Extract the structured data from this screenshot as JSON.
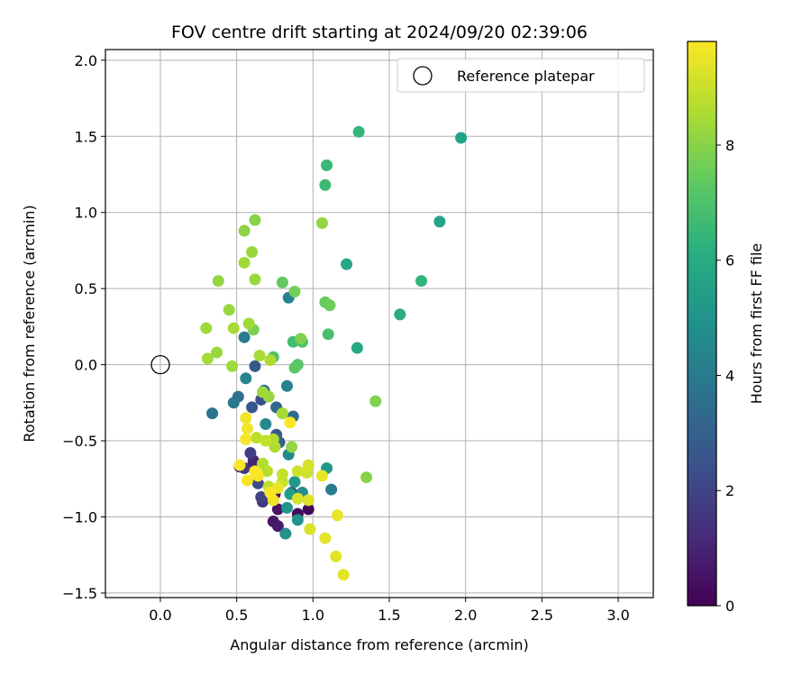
{
  "chart_data": {
    "type": "scatter",
    "title": "FOV centre drift starting at 2024/09/20 02:39:06",
    "xlabel": "Angular distance from reference (arcmin)",
    "ylabel": "Rotation from reference (arcmin)",
    "xlim": [
      -0.36,
      3.23
    ],
    "ylim": [
      -1.53,
      2.07
    ],
    "xticks": [
      0.0,
      0.5,
      1.0,
      1.5,
      2.0,
      2.5,
      3.0
    ],
    "xtick_labels": [
      "0.0",
      "0.5",
      "1.0",
      "1.5",
      "2.0",
      "2.5",
      "3.0"
    ],
    "yticks": [
      -1.5,
      -1.0,
      -0.5,
      0.0,
      0.5,
      1.0,
      1.5,
      2.0
    ],
    "ytick_labels": [
      "−1.5",
      "−1.0",
      "−0.5",
      "0.0",
      "0.5",
      "1.0",
      "1.5",
      "2.0"
    ],
    "grid": true,
    "legend": {
      "position": "top-right",
      "entries": [
        {
          "label": "Reference platepar",
          "marker": "open-circle"
        }
      ]
    },
    "reference_point": {
      "x": 0.0,
      "y": 0.0
    },
    "colorbar": {
      "label": "Hours from first FF file",
      "colormap": "viridis",
      "range": [
        0,
        9.8
      ],
      "ticks": [
        0,
        2,
        4,
        6,
        8
      ],
      "tick_labels": [
        "0",
        "2",
        "4",
        "6",
        "8"
      ]
    },
    "points": [
      {
        "x": 0.97,
        "y": -0.95,
        "hours": 0.2
      },
      {
        "x": 0.9,
        "y": -0.98,
        "hours": 0.3
      },
      {
        "x": 0.75,
        "y": -0.85,
        "hours": 0.4
      },
      {
        "x": 0.77,
        "y": -0.95,
        "hours": 0.5
      },
      {
        "x": 0.74,
        "y": -1.03,
        "hours": 0.6
      },
      {
        "x": 0.77,
        "y": -1.06,
        "hours": 0.7
      },
      {
        "x": 0.6,
        "y": -0.67,
        "hours": 0.8
      },
      {
        "x": 0.61,
        "y": -0.63,
        "hours": 1.0
      },
      {
        "x": 0.52,
        "y": -0.67,
        "hours": 1.2
      },
      {
        "x": 0.67,
        "y": -0.9,
        "hours": 1.6
      },
      {
        "x": 0.55,
        "y": -0.68,
        "hours": 1.7
      },
      {
        "x": 0.59,
        "y": -0.58,
        "hours": 1.8
      },
      {
        "x": 0.66,
        "y": -0.87,
        "hours": 2.0
      },
      {
        "x": 0.64,
        "y": -0.78,
        "hours": 2.3
      },
      {
        "x": 0.86,
        "y": -0.84,
        "hours": 2.5
      },
      {
        "x": 0.66,
        "y": -0.23,
        "hours": 2.4
      },
      {
        "x": 0.6,
        "y": -0.28,
        "hours": 2.6
      },
      {
        "x": 0.62,
        "y": -0.01,
        "hours": 2.7
      },
      {
        "x": 0.76,
        "y": -0.46,
        "hours": 2.8
      },
      {
        "x": 0.78,
        "y": -0.51,
        "hours": 3.0
      },
      {
        "x": 0.76,
        "y": -0.28,
        "hours": 3.2
      },
      {
        "x": 0.68,
        "y": -0.17,
        "hours": 3.4
      },
      {
        "x": 0.87,
        "y": -0.34,
        "hours": 3.4
      },
      {
        "x": 0.51,
        "y": -0.21,
        "hours": 3.6
      },
      {
        "x": 0.34,
        "y": -0.32,
        "hours": 3.8
      },
      {
        "x": 0.48,
        "y": -0.25,
        "hours": 3.9
      },
      {
        "x": 0.55,
        "y": 0.18,
        "hours": 4.1
      },
      {
        "x": 0.83,
        "y": -0.14,
        "hours": 4.3
      },
      {
        "x": 0.84,
        "y": 0.44,
        "hours": 4.4
      },
      {
        "x": 0.56,
        "y": -0.09,
        "hours": 4.5
      },
      {
        "x": 0.69,
        "y": -0.39,
        "hours": 4.6
      },
      {
        "x": 0.84,
        "y": -0.59,
        "hours": 4.7
      },
      {
        "x": 0.93,
        "y": -0.84,
        "hours": 4.8
      },
      {
        "x": 1.12,
        "y": -0.82,
        "hours": 4.2
      },
      {
        "x": 0.82,
        "y": -1.11,
        "hours": 4.9
      },
      {
        "x": 0.9,
        "y": -1.02,
        "hours": 5.0
      },
      {
        "x": 0.83,
        "y": -0.94,
        "hours": 5.1
      },
      {
        "x": 0.88,
        "y": -0.77,
        "hours": 5.2
      },
      {
        "x": 1.09,
        "y": -0.68,
        "hours": 5.3
      },
      {
        "x": 0.85,
        "y": -0.85,
        "hours": 5.5
      },
      {
        "x": 1.97,
        "y": 1.49,
        "hours": 5.6
      },
      {
        "x": 1.83,
        "y": 0.94,
        "hours": 5.7
      },
      {
        "x": 1.22,
        "y": 0.66,
        "hours": 5.8
      },
      {
        "x": 1.57,
        "y": 0.33,
        "hours": 6.0
      },
      {
        "x": 1.29,
        "y": 0.11,
        "hours": 5.9
      },
      {
        "x": 1.71,
        "y": 0.55,
        "hours": 6.4
      },
      {
        "x": 1.3,
        "y": 1.53,
        "hours": 6.5
      },
      {
        "x": 1.09,
        "y": 1.31,
        "hours": 6.6
      },
      {
        "x": 1.08,
        "y": 1.18,
        "hours": 6.7
      },
      {
        "x": 0.87,
        "y": 0.15,
        "hours": 6.8
      },
      {
        "x": 1.1,
        "y": 0.2,
        "hours": 6.9
      },
      {
        "x": 0.93,
        "y": 0.15,
        "hours": 7.0
      },
      {
        "x": 0.74,
        "y": 0.05,
        "hours": 7.1
      },
      {
        "x": 0.9,
        "y": -0.0,
        "hours": 7.2
      },
      {
        "x": 0.88,
        "y": -0.02,
        "hours": 7.3
      },
      {
        "x": 0.8,
        "y": 0.54,
        "hours": 7.4
      },
      {
        "x": 1.08,
        "y": 0.41,
        "hours": 7.5
      },
      {
        "x": 1.11,
        "y": 0.39,
        "hours": 7.6
      },
      {
        "x": 0.88,
        "y": 0.48,
        "hours": 7.7
      },
      {
        "x": 0.61,
        "y": 0.23,
        "hours": 7.8
      },
      {
        "x": 0.92,
        "y": 0.17,
        "hours": 7.9
      },
      {
        "x": 0.62,
        "y": 0.95,
        "hours": 8.0
      },
      {
        "x": 0.55,
        "y": 0.88,
        "hours": 8.1
      },
      {
        "x": 1.06,
        "y": 0.93,
        "hours": 8.2
      },
      {
        "x": 0.6,
        "y": 0.74,
        "hours": 8.3
      },
      {
        "x": 0.55,
        "y": 0.67,
        "hours": 8.4
      },
      {
        "x": 0.62,
        "y": 0.56,
        "hours": 8.3
      },
      {
        "x": 0.38,
        "y": 0.55,
        "hours": 8.2
      },
      {
        "x": 0.45,
        "y": 0.36,
        "hours": 8.3
      },
      {
        "x": 0.3,
        "y": 0.24,
        "hours": 8.4
      },
      {
        "x": 0.48,
        "y": 0.24,
        "hours": 8.5
      },
      {
        "x": 0.58,
        "y": 0.27,
        "hours": 8.4
      },
      {
        "x": 0.31,
        "y": 0.04,
        "hours": 8.5
      },
      {
        "x": 0.37,
        "y": 0.08,
        "hours": 8.3
      },
      {
        "x": 0.47,
        "y": -0.01,
        "hours": 8.4
      },
      {
        "x": 0.65,
        "y": 0.06,
        "hours": 8.5
      },
      {
        "x": 0.72,
        "y": 0.03,
        "hours": 8.6
      },
      {
        "x": 0.71,
        "y": -0.21,
        "hours": 8.3
      },
      {
        "x": 0.67,
        "y": -0.18,
        "hours": 8.4
      },
      {
        "x": 0.8,
        "y": -0.32,
        "hours": 8.5
      },
      {
        "x": 1.41,
        "y": -0.24,
        "hours": 7.9
      },
      {
        "x": 1.35,
        "y": -0.74,
        "hours": 8.0
      },
      {
        "x": 0.86,
        "y": -0.54,
        "hours": 8.2
      },
      {
        "x": 0.75,
        "y": -0.54,
        "hours": 8.6
      },
      {
        "x": 0.74,
        "y": -0.49,
        "hours": 8.7
      },
      {
        "x": 0.63,
        "y": -0.48,
        "hours": 8.8
      },
      {
        "x": 0.69,
        "y": -0.5,
        "hours": 8.9
      },
      {
        "x": 0.67,
        "y": -0.65,
        "hours": 8.7
      },
      {
        "x": 0.7,
        "y": -0.7,
        "hours": 8.8
      },
      {
        "x": 0.71,
        "y": -0.8,
        "hours": 8.9
      },
      {
        "x": 0.8,
        "y": -0.72,
        "hours": 9.0
      },
      {
        "x": 0.8,
        "y": -0.77,
        "hours": 9.0
      },
      {
        "x": 0.9,
        "y": -0.7,
        "hours": 9.1
      },
      {
        "x": 0.96,
        "y": -0.71,
        "hours": 9.1
      },
      {
        "x": 0.97,
        "y": -0.66,
        "hours": 9.2
      },
      {
        "x": 0.9,
        "y": -0.88,
        "hours": 9.2
      },
      {
        "x": 0.97,
        "y": -0.89,
        "hours": 9.3
      },
      {
        "x": 0.98,
        "y": -1.08,
        "hours": 9.3
      },
      {
        "x": 1.08,
        "y": -1.14,
        "hours": 9.4
      },
      {
        "x": 1.15,
        "y": -1.26,
        "hours": 9.4
      },
      {
        "x": 1.2,
        "y": -1.38,
        "hours": 9.4
      },
      {
        "x": 1.16,
        "y": -0.99,
        "hours": 9.5
      },
      {
        "x": 1.06,
        "y": -0.73,
        "hours": 9.5
      },
      {
        "x": 0.77,
        "y": -0.81,
        "hours": 9.5
      },
      {
        "x": 0.74,
        "y": -0.89,
        "hours": 9.6
      },
      {
        "x": 0.56,
        "y": -0.35,
        "hours": 9.6
      },
      {
        "x": 0.57,
        "y": -0.42,
        "hours": 9.6
      },
      {
        "x": 0.56,
        "y": -0.49,
        "hours": 9.7
      },
      {
        "x": 0.52,
        "y": -0.66,
        "hours": 9.7
      },
      {
        "x": 0.57,
        "y": -0.76,
        "hours": 9.7
      },
      {
        "x": 0.64,
        "y": -0.73,
        "hours": 9.7
      },
      {
        "x": 0.72,
        "y": -0.84,
        "hours": 9.7
      },
      {
        "x": 0.85,
        "y": -0.38,
        "hours": 9.8
      },
      {
        "x": 0.62,
        "y": -0.7,
        "hours": 9.8
      }
    ]
  }
}
